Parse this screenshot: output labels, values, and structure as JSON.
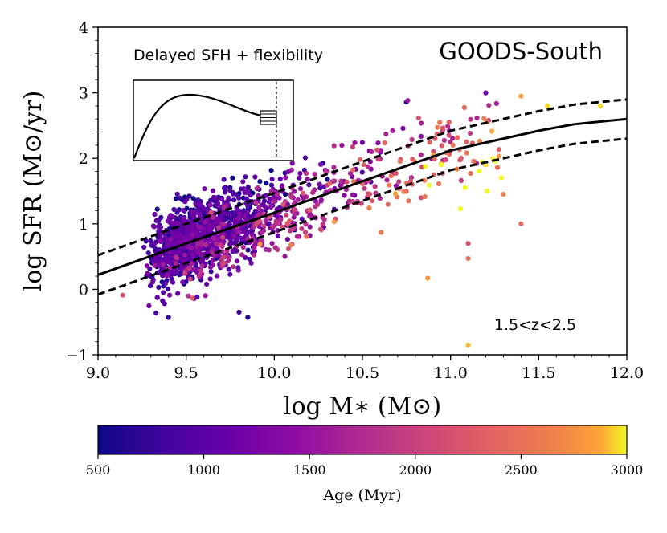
{
  "chart_data": {
    "type": "scatter",
    "title": "GOODS-South",
    "subtitle": "Delayed SFH + flexibility",
    "annotation": "1.5<z<2.5",
    "xlabel": "log M∗ (M⊙)",
    "ylabel": "log SFR (M⊙/yr)",
    "xlim": [
      9.0,
      12.0
    ],
    "ylim": [
      -1,
      4
    ],
    "x_ticks": [
      9.0,
      9.5,
      10.0,
      10.5,
      11.0,
      11.5,
      12.0
    ],
    "x_tick_labels": [
      "9.0",
      "9.5",
      "10.0",
      "10.5",
      "11.0",
      "11.5",
      "12.0"
    ],
    "y_ticks": [
      -1,
      0,
      1,
      2,
      3,
      4
    ],
    "y_tick_labels": [
      "−1",
      "0",
      "1",
      "2",
      "3",
      "4"
    ],
    "colorbar": {
      "label": "Age (Myr)",
      "colormap": "plasma",
      "range": [
        500,
        3000
      ],
      "ticks": [
        500,
        1000,
        1500,
        2000,
        2500,
        3000
      ],
      "tick_labels": [
        "500",
        "1000",
        "1500",
        "2000",
        "2500",
        "3000"
      ]
    },
    "main_sequence": {
      "x": [
        9.0,
        9.5,
        10.0,
        10.5,
        11.0,
        11.5,
        11.7,
        12.0
      ],
      "y": [
        0.22,
        0.7,
        1.17,
        1.65,
        2.12,
        2.42,
        2.52,
        2.6
      ],
      "upper": [
        0.52,
        1.0,
        1.47,
        1.95,
        2.42,
        2.72,
        2.82,
        2.9
      ],
      "lower": [
        -0.08,
        0.4,
        0.87,
        1.35,
        1.82,
        2.12,
        2.22,
        2.3
      ]
    },
    "scatter_model": {
      "n_points": 1500,
      "seed": 20240,
      "mass_range": [
        9.1,
        11.9
      ],
      "scatter_dex": 0.3
    },
    "outliers": [
      {
        "x": 11.1,
        "y": -0.85,
        "age": 2900
      },
      {
        "x": 10.87,
        "y": 0.17,
        "age": 2800
      },
      {
        "x": 11.1,
        "y": 0.47,
        "age": 2500
      },
      {
        "x": 11.1,
        "y": 0.7,
        "age": 2200
      },
      {
        "x": 11.4,
        "y": 1.0,
        "age": 2450
      },
      {
        "x": 11.3,
        "y": 1.45,
        "age": 2650
      },
      {
        "x": 11.2,
        "y": 1.9,
        "age": 2950
      },
      {
        "x": 9.4,
        "y": -0.43,
        "age": 700
      },
      {
        "x": 9.8,
        "y": -0.35,
        "age": 800
      },
      {
        "x": 9.85,
        "y": -0.43,
        "age": 650
      },
      {
        "x": 9.14,
        "y": -0.09,
        "age": 2200
      },
      {
        "x": 11.55,
        "y": 2.8,
        "age": 2950
      },
      {
        "x": 11.4,
        "y": 2.95,
        "age": 2850
      },
      {
        "x": 11.2,
        "y": 3.0,
        "age": 1100
      },
      {
        "x": 11.85,
        "y": 2.8,
        "age": 2950
      }
    ]
  },
  "colors": {
    "background": "#ffffff",
    "axis": "#000000"
  }
}
